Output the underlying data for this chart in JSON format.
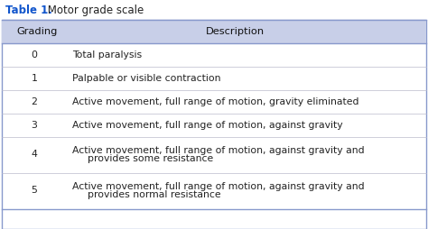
{
  "title_bold": "Table 1.",
  "title_rest": " Motor grade scale",
  "header_grading": "Grading",
  "header_description": "Description",
  "header_bg": "#c8cfe8",
  "border_color": "#8899cc",
  "bg_color": "#ffffff",
  "title_color": "#1155cc",
  "rows": [
    {
      "grade": "0",
      "desc1": "Total paralysis",
      "desc2": ""
    },
    {
      "grade": "1",
      "desc1": "Palpable or visible contraction",
      "desc2": ""
    },
    {
      "grade": "2",
      "desc1": "Active movement, full range of motion, gravity eliminated",
      "desc2": ""
    },
    {
      "grade": "3",
      "desc1": "Active movement, full range of motion, against gravity",
      "desc2": ""
    },
    {
      "grade": "4",
      "desc1": "Active movement, full range of motion, against gravity and",
      "desc2": "  provides some resistance"
    },
    {
      "grade": "5",
      "desc1": "Active movement, full range of motion, against gravity and",
      "desc2": "  provides normal resistance"
    }
  ],
  "font_size": 7.8,
  "header_font_size": 8.2,
  "title_font_size": 8.5
}
